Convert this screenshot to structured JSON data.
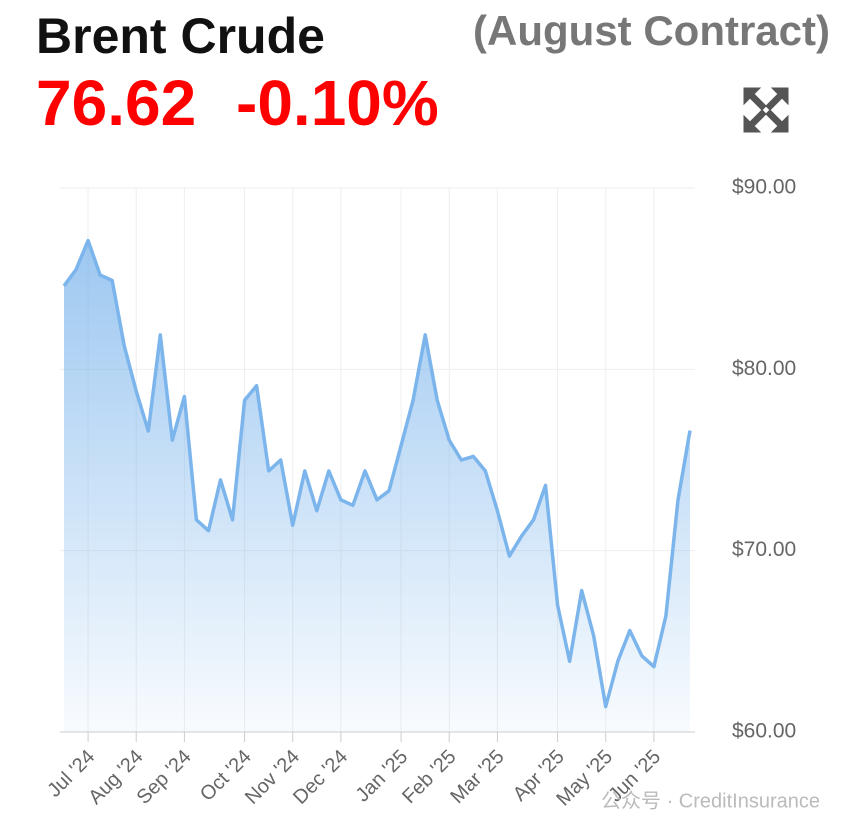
{
  "chart_data": {
    "type": "line",
    "title": "Brent Crude",
    "subtitle": "(August Contract)",
    "price": "76.62",
    "change": "-0.10%",
    "watermark": "公众号 · CreditInsurance",
    "categories": [
      null,
      null,
      "Jul '24",
      null,
      null,
      null,
      "Aug '24",
      null,
      null,
      null,
      "Sep '24",
      null,
      null,
      null,
      null,
      "Oct '24",
      null,
      null,
      null,
      "Nov '24",
      null,
      null,
      null,
      "Dec '24",
      null,
      null,
      null,
      null,
      "Jan '25",
      null,
      null,
      null,
      "Feb '25",
      null,
      null,
      null,
      "Mar '25",
      null,
      null,
      null,
      null,
      "Apr '25",
      null,
      null,
      null,
      "May '25",
      null,
      null,
      null,
      "Jun '25",
      null,
      null,
      null
    ],
    "series": [
      {
        "name": "Brent Crude",
        "color": "#7cb5ec",
        "values": [
          84.6,
          85.5,
          87.1,
          85.2,
          84.9,
          81.3,
          78.8,
          76.6,
          81.9,
          76.1,
          78.5,
          71.7,
          71.1,
          73.9,
          71.7,
          78.3,
          79.1,
          74.4,
          75.0,
          71.4,
          74.4,
          72.2,
          74.4,
          72.8,
          72.5,
          74.4,
          72.8,
          73.3,
          75.8,
          78.3,
          81.9,
          78.3,
          76.1,
          75.0,
          75.2,
          74.4,
          72.2,
          69.7,
          70.8,
          71.7,
          73.6,
          67.0,
          63.9,
          67.8,
          65.3,
          61.4,
          63.9,
          65.6,
          64.2,
          63.6,
          66.4,
          72.8,
          76.62
        ]
      }
    ],
    "ylim": [
      60,
      90
    ],
    "yticks": [
      {
        "value": 60,
        "label": "$60.00"
      },
      {
        "value": 70,
        "label": "$70.00"
      },
      {
        "value": 80,
        "label": "$80.00"
      },
      {
        "value": 90,
        "label": "$90.00"
      }
    ],
    "grid": true
  }
}
